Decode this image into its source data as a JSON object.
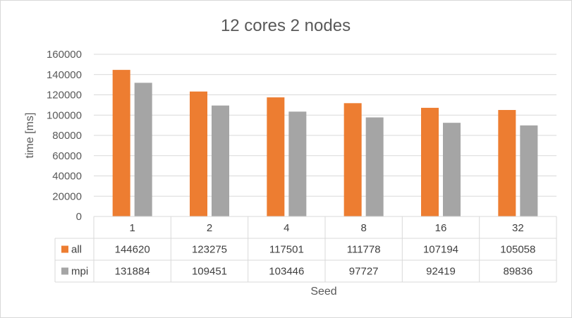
{
  "chart_data": {
    "type": "bar",
    "title": "12 cores 2 nodes",
    "xlabel": "Seed",
    "ylabel": "time [ms]",
    "categories": [
      "1",
      "2",
      "4",
      "8",
      "16",
      "32"
    ],
    "ylim": [
      0,
      160000
    ],
    "yticks": [
      "0",
      "20000",
      "40000",
      "60000",
      "80000",
      "100000",
      "120000",
      "140000",
      "160000"
    ],
    "grid": true,
    "legend": "data-table",
    "series": [
      {
        "name": "all",
        "color": "#ed7d31",
        "values": [
          144620,
          123275,
          117501,
          111778,
          107194,
          105058
        ],
        "labels": [
          "144620",
          "123275",
          "117501",
          "111778",
          "107194",
          "105058"
        ]
      },
      {
        "name": "mpi",
        "color": "#a5a5a5",
        "values": [
          131884,
          109451,
          103446,
          97727,
          92419,
          89836
        ],
        "labels": [
          "131884",
          "109451",
          "103446",
          "97727",
          "92419",
          "89836"
        ]
      }
    ]
  }
}
